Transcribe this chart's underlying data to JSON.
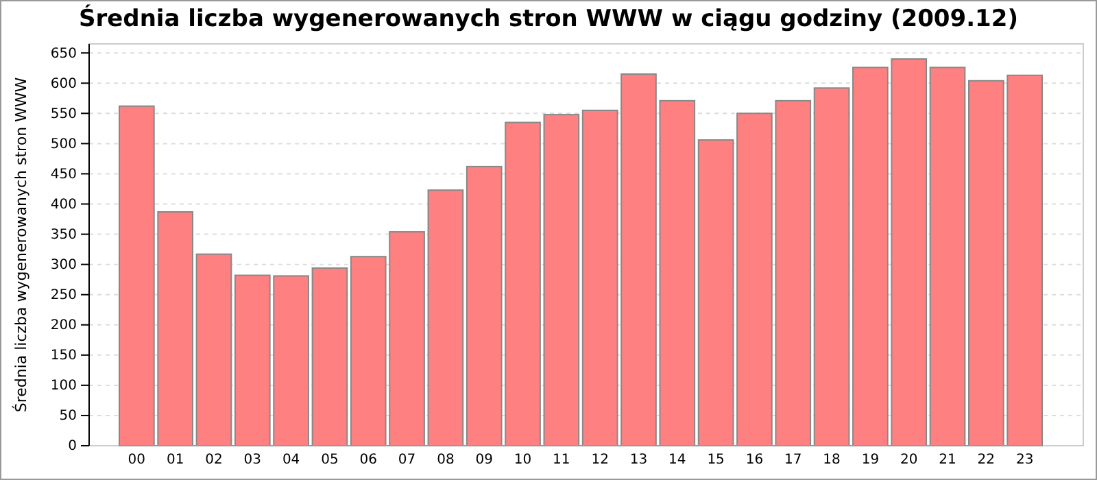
{
  "chart_data": {
    "type": "bar",
    "title": "Średnia liczba wygenerowanych stron WWW w ciągu godziny (2009.12)",
    "ylabel": "Średnia liczba wygenerowanych stron WWW",
    "categories": [
      "00",
      "01",
      "02",
      "03",
      "04",
      "05",
      "06",
      "07",
      "08",
      "09",
      "10",
      "11",
      "12",
      "13",
      "14",
      "15",
      "16",
      "17",
      "18",
      "19",
      "20",
      "21",
      "22",
      "23"
    ],
    "values": [
      562,
      387,
      317,
      282,
      281,
      294,
      313,
      354,
      423,
      462,
      535,
      548,
      555,
      615,
      571,
      506,
      550,
      571,
      592,
      626,
      640,
      626,
      604,
      613
    ],
    "color": "#ff8080",
    "ylim": [
      0,
      665
    ],
    "yticks": [
      0,
      50,
      100,
      150,
      200,
      250,
      300,
      350,
      400,
      450,
      500,
      550,
      600,
      650
    ],
    "grid": "y"
  }
}
